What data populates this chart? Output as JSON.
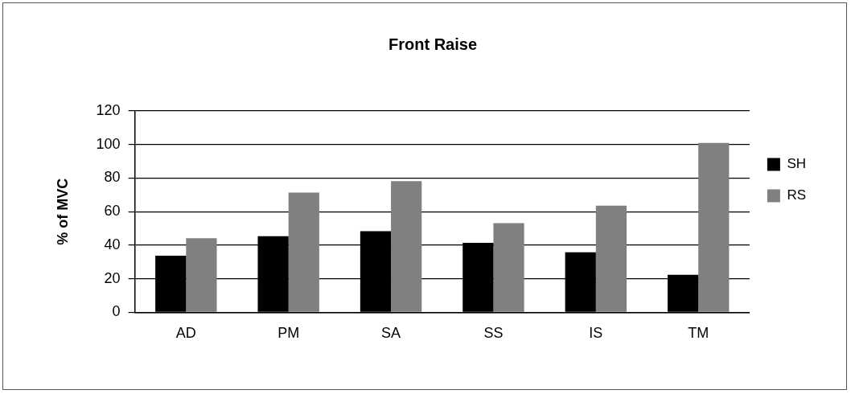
{
  "chart_data": {
    "type": "bar",
    "title": "Front Raise",
    "ylabel": "% of MVC",
    "categories": [
      "AD",
      "PM",
      "SA",
      "SS",
      "IS",
      "TM"
    ],
    "series": [
      {
        "name": "SH",
        "color": "#000000",
        "values": [
          33.7,
          45.3,
          48.4,
          41.4,
          35.8,
          22.3
        ]
      },
      {
        "name": "RS",
        "color": "#808080",
        "values": [
          44.2,
          71.3,
          78.2,
          53.1,
          63.6,
          101
        ]
      }
    ],
    "ylim": [
      0,
      120
    ],
    "yticks": [
      0,
      20,
      40,
      60,
      80,
      100,
      120
    ],
    "grid": "y",
    "legend": "right"
  }
}
